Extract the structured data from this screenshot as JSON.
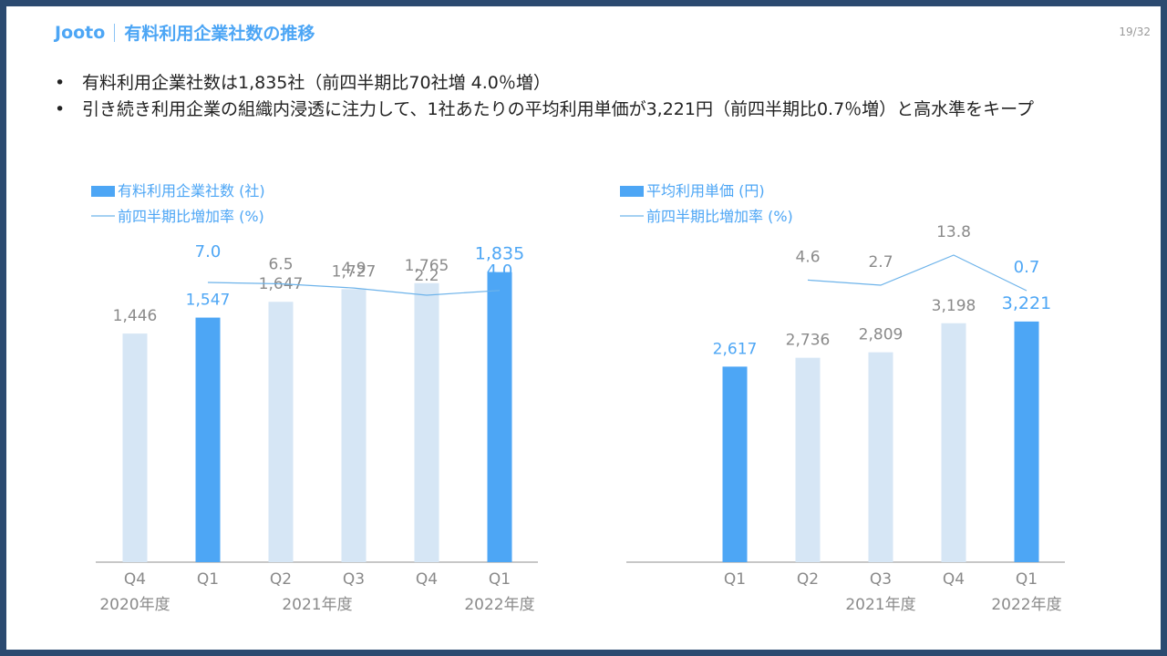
{
  "header": {
    "brand": "Jooto",
    "title": "有料利用企業社数の推移",
    "page_number": "19/32"
  },
  "bullets": [
    "有料利用企業社数は1,835社（前四半期比70社増 4.0％増）",
    "引き続き利用企業の組織内浸透に注力して、1社あたりの平均利用単価が3,221円（前四半期比0.7％増）と高水準をキープ"
  ],
  "colors": {
    "highlight": "#4da6f5",
    "muted_bar": "#d6e6f5",
    "muted_text": "#8a8a8a",
    "line": "#6db3ea",
    "frame": "#2b4a70"
  },
  "chart_data": [
    {
      "type": "bar",
      "legend": {
        "bar_label": "有料利用企業社数 (社)",
        "line_label": "前四半期比増加率 (%)"
      },
      "categories": [
        "Q4",
        "Q1",
        "Q2",
        "Q3",
        "Q4",
        "Q1"
      ],
      "year_labels": [
        {
          "label": "2020年度",
          "index": 0
        },
        {
          "label": "2021年度",
          "index": 2.5
        },
        {
          "label": "2022年度",
          "index": 5
        }
      ],
      "series": [
        {
          "name": "有料利用企業社数 (社)",
          "kind": "bar",
          "values": [
            1446,
            1547,
            1647,
            1727,
            1765,
            1835
          ],
          "value_labels": [
            "1,446",
            "1,547",
            "1,647",
            "1,727",
            "1,765",
            "1,835"
          ],
          "highlight": [
            false,
            true,
            false,
            false,
            false,
            true
          ]
        },
        {
          "name": "前四半期比増加率 (%)",
          "kind": "line",
          "values": [
            null,
            7.0,
            6.5,
            4.9,
            2.2,
            4.0
          ],
          "value_labels": [
            "",
            "7.0",
            "6.5",
            "4.9",
            "2.2",
            "4.0"
          ],
          "highlight": [
            false,
            true,
            false,
            false,
            false,
            true
          ]
        }
      ],
      "ylim": [
        0,
        2000
      ]
    },
    {
      "type": "bar",
      "legend": {
        "bar_label": "平均利用単価 (円)",
        "line_label": "前四半期比増加率 (%)"
      },
      "categories": [
        "Q1",
        "Q2",
        "Q3",
        "Q4",
        "Q1"
      ],
      "year_labels": [
        {
          "label": "2021年度",
          "index": 2
        },
        {
          "label": "2022年度",
          "index": 4
        }
      ],
      "series": [
        {
          "name": "平均利用単価 (円)",
          "kind": "bar",
          "values": [
            2617,
            2736,
            2809,
            3198,
            3221
          ],
          "value_labels": [
            "2,617",
            "2,736",
            "2,809",
            "3,198",
            "3,221"
          ],
          "highlight": [
            true,
            false,
            false,
            false,
            true
          ]
        },
        {
          "name": "前四半期比増加率 (%)",
          "kind": "line",
          "values": [
            null,
            4.6,
            2.7,
            13.8,
            0.7
          ],
          "value_labels": [
            "",
            "4.6",
            "2.7",
            "13.8",
            "0.7"
          ],
          "highlight": [
            false,
            false,
            false,
            false,
            true
          ]
        }
      ],
      "ylim": [
        0,
        3500
      ]
    }
  ]
}
